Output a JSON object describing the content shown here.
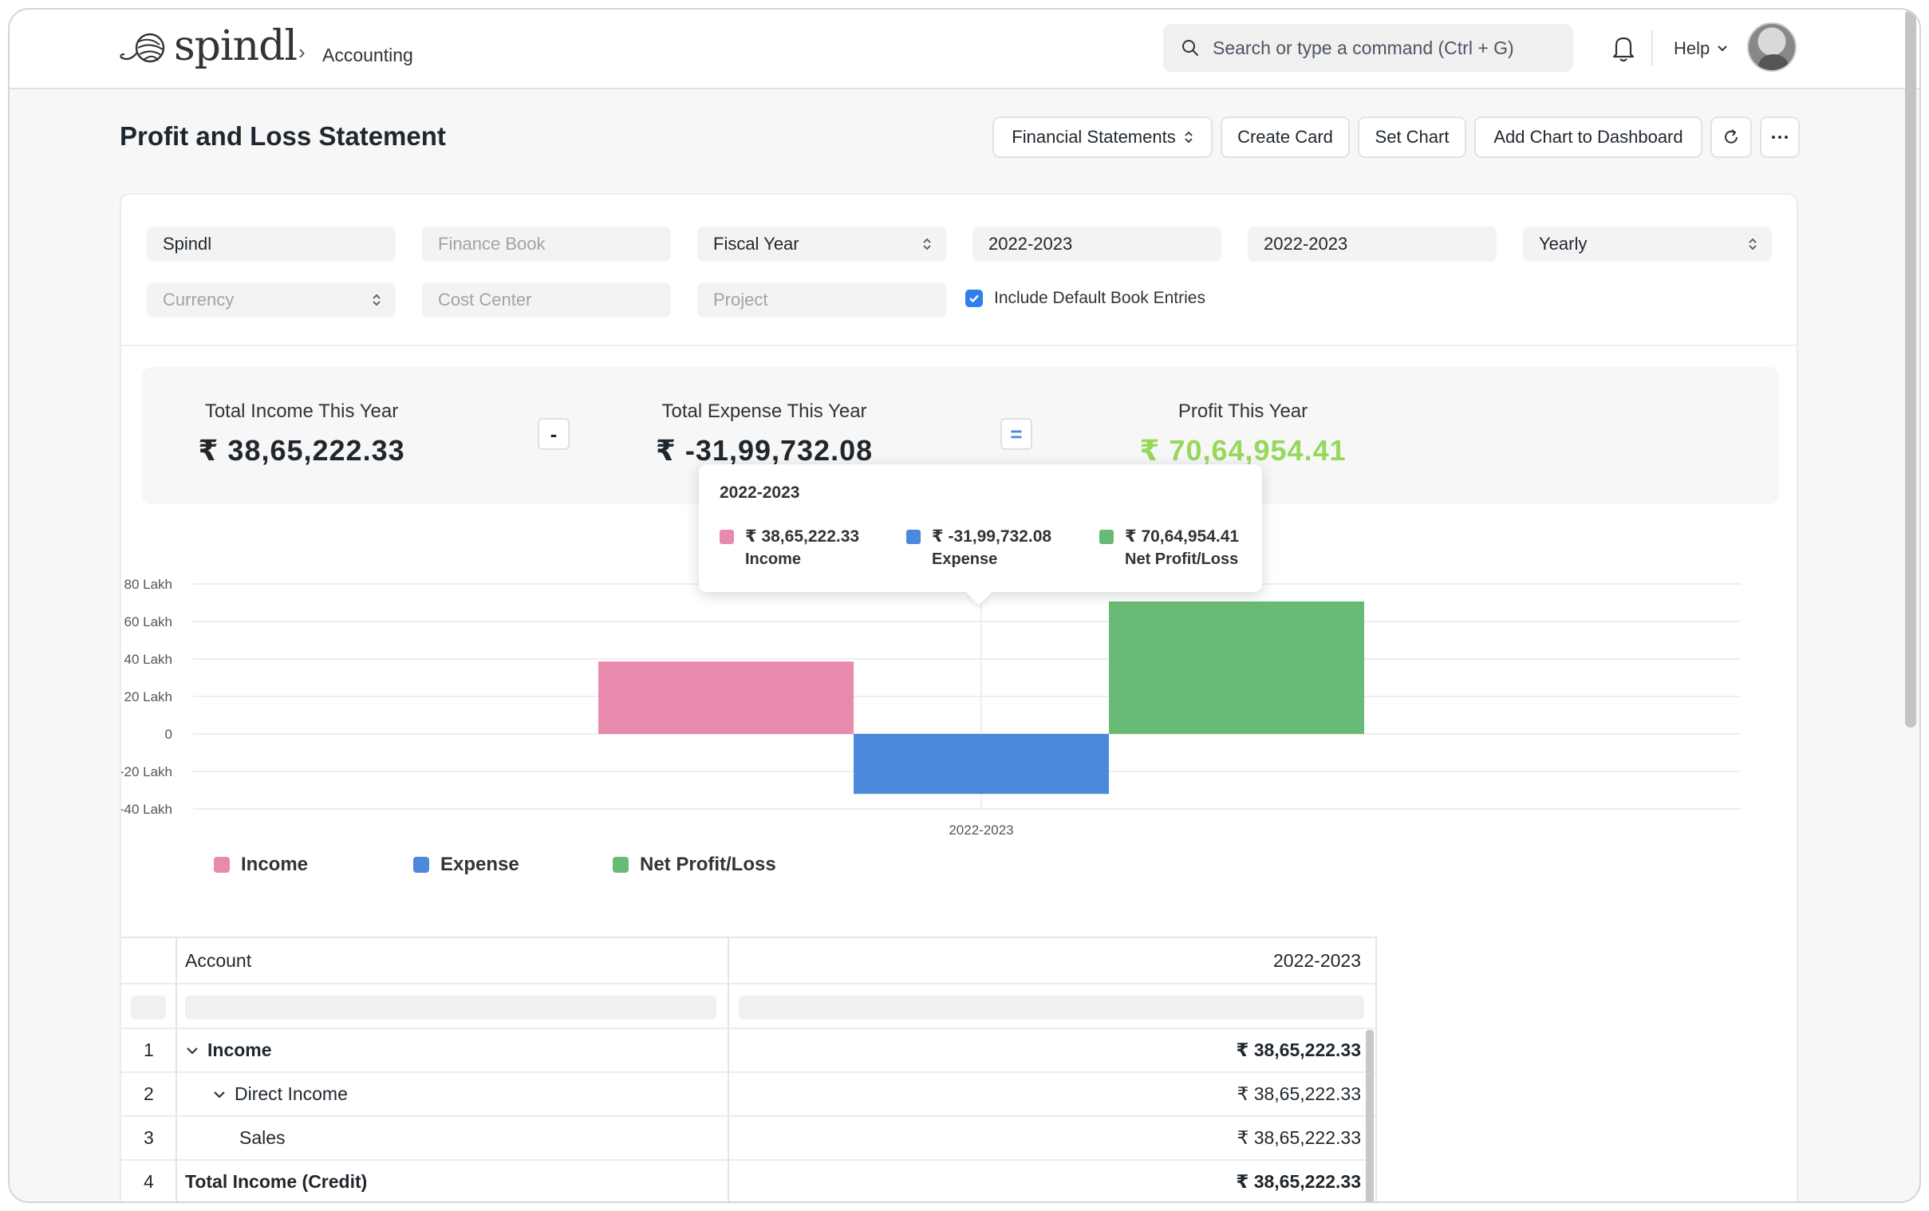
{
  "navbar": {
    "logo_text": "spindl",
    "breadcrumb": "Accounting",
    "search_placeholder": "Search or type a command (Ctrl + G)",
    "help_label": "Help"
  },
  "page": {
    "title": "Profit and Loss Statement",
    "buttons": {
      "financial_statements": "Financial Statements",
      "create_card": "Create Card",
      "set_chart": "Set Chart",
      "add_chart": "Add Chart to Dashboard",
      "refresh_icon": "refresh-icon",
      "more_icon": "ellipsis-icon"
    }
  },
  "filters": {
    "company": "Spindl",
    "finance_book_placeholder": "Finance Book",
    "filter_based_on": "Fiscal Year",
    "from_year": "2022-2023",
    "to_year": "2022-2023",
    "periodicity": "Yearly",
    "currency_placeholder": "Currency",
    "cost_center_placeholder": "Cost Center",
    "project_placeholder": "Project",
    "include_default_label": "Include Default Book Entries",
    "include_default_checked": true
  },
  "summary": {
    "income_label": "Total Income This Year",
    "income_value": "₹ 38,65,222.33",
    "minus_op": "-",
    "expense_label": "Total Expense This Year",
    "expense_value": "₹ -31,99,732.08",
    "equals_op": "=",
    "profit_label": "Profit This Year",
    "profit_value": "₹ 70,64,954.41",
    "profit_color": "#98d85b"
  },
  "chart_data": {
    "type": "bar",
    "categories": [
      "2022-2023"
    ],
    "series": [
      {
        "name": "Income",
        "values": [
          3865222.33
        ],
        "color": "#e88aad"
      },
      {
        "name": "Expense",
        "values": [
          -3199732.08
        ],
        "color": "#4a89dc"
      },
      {
        "name": "Net Profit/Loss",
        "values": [
          7064954.41
        ],
        "color": "#68bb77"
      }
    ],
    "y_ticks": [
      "80 Lakh",
      "60 Lakh",
      "40 Lakh",
      "20 Lakh",
      "0",
      "-20 Lakh",
      "-40 Lakh"
    ],
    "y_tick_values": [
      8000000,
      6000000,
      4000000,
      2000000,
      0,
      -2000000,
      -4000000
    ],
    "ylim": [
      -4000000,
      8000000
    ],
    "x_tick_labels": [
      "2022-2023"
    ],
    "grid": true,
    "legend_position": "bottom-left"
  },
  "tooltip": {
    "title": "2022-2023",
    "items": [
      {
        "value": "₹ 38,65,222.33",
        "name": "Income",
        "color": "#e88aad"
      },
      {
        "value": "₹ -31,99,732.08",
        "name": "Expense",
        "color": "#4a89dc"
      },
      {
        "value": "₹ 70,64,954.41",
        "name": "Net Profit/Loss",
        "color": "#68bb77"
      }
    ]
  },
  "legend": [
    {
      "name": "Income",
      "color": "#e88aad"
    },
    {
      "name": "Expense",
      "color": "#4a89dc"
    },
    {
      "name": "Net Profit/Loss",
      "color": "#68bb77"
    }
  ],
  "table": {
    "columns": [
      "Account",
      "2022-2023"
    ],
    "rows": [
      {
        "num": "1",
        "account": "Income",
        "value": "₹ 38,65,222.33",
        "bold": true,
        "indent": 0,
        "collapsible": true
      },
      {
        "num": "2",
        "account": "Direct Income",
        "value": "₹ 38,65,222.33",
        "bold": false,
        "indent": 1,
        "collapsible": true
      },
      {
        "num": "3",
        "account": "Sales",
        "value": "₹ 38,65,222.33",
        "bold": false,
        "indent": 2,
        "collapsible": false
      },
      {
        "num": "4",
        "account": "Total Income (Credit)",
        "value": "₹ 38,65,222.33",
        "bold": true,
        "indent": 0,
        "collapsible": false
      }
    ]
  }
}
